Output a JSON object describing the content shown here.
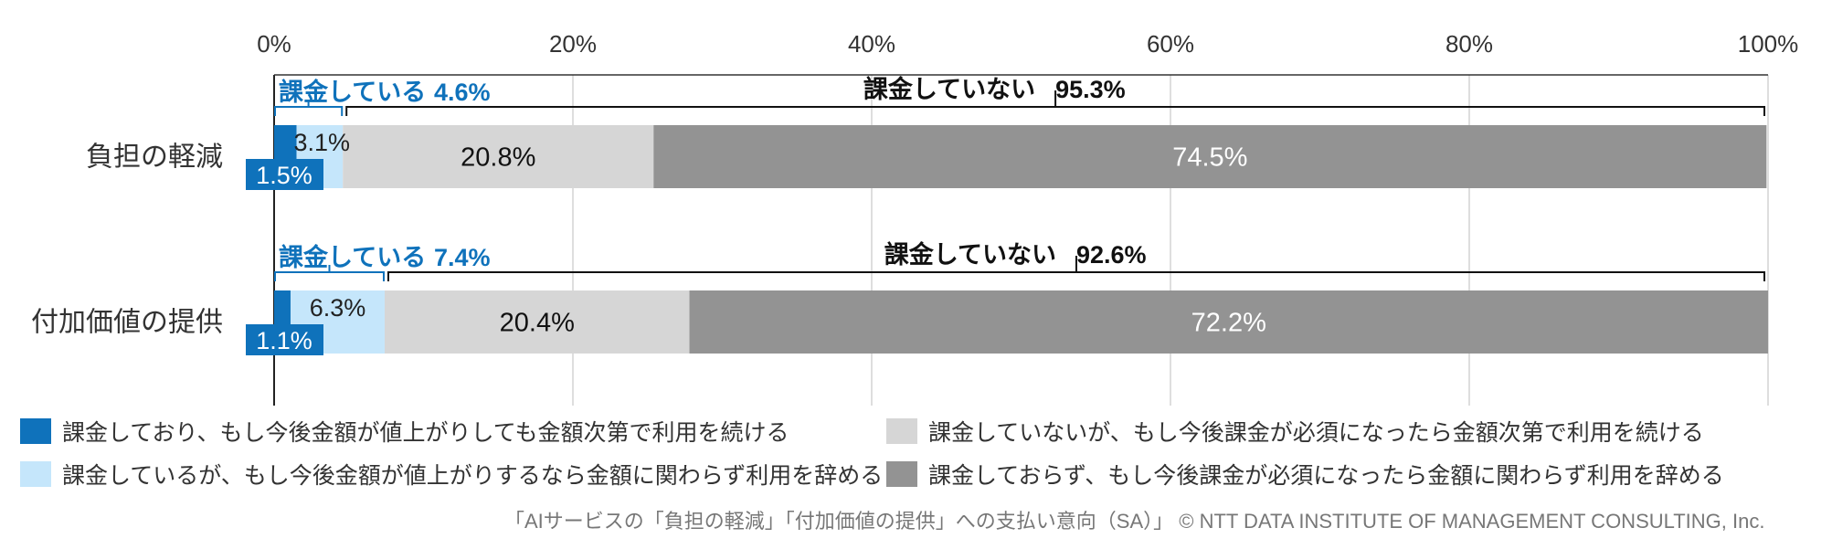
{
  "chart_data": {
    "type": "bar",
    "orientation": "horizontal",
    "stacked": true,
    "xlim": [
      0,
      100
    ],
    "x_ticks": [
      "0%",
      "20%",
      "40%",
      "60%",
      "80%",
      "100%"
    ],
    "categories": [
      "負担の軽減",
      "付加価値の提供"
    ],
    "series": [
      {
        "name": "課金しており、もし今後金額が値上がりしても金額次第で利用を続ける",
        "values": [
          1.5,
          1.1
        ],
        "color": "#0f72bb",
        "label_color": "#ffffff"
      },
      {
        "name": "課金しているが、もし今後金額が値上がりするなら金額に関わらず利用を辞める",
        "values": [
          3.1,
          6.3
        ],
        "color": "#c5e6fb",
        "label_color": "#222222"
      },
      {
        "name": "課金していないが、もし今後課金が必須になったら金額次第で利用を続ける",
        "values": [
          20.8,
          20.4
        ],
        "color": "#d6d6d6",
        "label_color": "#111111"
      },
      {
        "name": "課金しておらず、もし今後課金が必須になったら金額に関わらず利用を辞める",
        "values": [
          74.5,
          72.2
        ],
        "color": "#939393",
        "label_color": "#ffffff"
      }
    ],
    "value_labels": [
      [
        "1.5%",
        "3.1%",
        "20.8%",
        "74.5%"
      ],
      [
        "1.1%",
        "6.3%",
        "20.4%",
        "72.2%"
      ]
    ],
    "group_annotations": [
      {
        "paying_label": "課金している",
        "paying_value": "4.6%",
        "nonpaying_label": "課金していない",
        "nonpaying_value": "95.3%"
      },
      {
        "paying_label": "課金している",
        "paying_value": "7.4%",
        "nonpaying_label": "課金していない",
        "nonpaying_value": "92.6%"
      }
    ],
    "grid": true,
    "legend": "bottom",
    "source": "「AIサービスの「負担の軽減」「付加価値の提供」への支払い意向（SA）」 © NTT DATA INSTITUTE OF MANAGEMENT CONSULTING, Inc."
  }
}
